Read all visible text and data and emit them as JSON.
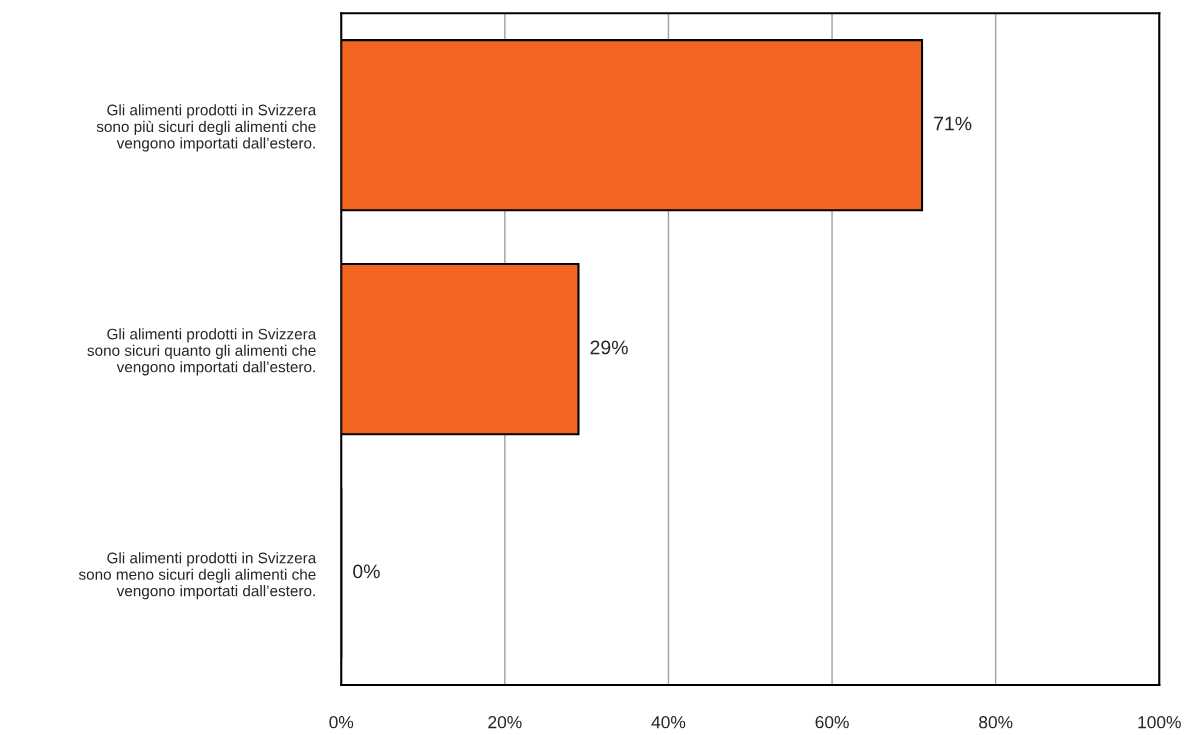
{
  "chart_data": {
    "type": "bar",
    "orientation": "horizontal",
    "categories": [
      "Gli alimenti prodotti in Svizzera\nsono più sicuri degli alimenti che\nvengono importati dall’estero.",
      "Gli alimenti prodotti in Svizzera\nsono sicuri quanto gli alimenti che\nvengono importati dall’estero.",
      "Gli alimenti prodotti in Svizzera\nsono meno sicuri degli alimenti che\nvengono importati dall’estero."
    ],
    "values": [
      71,
      29,
      0
    ],
    "value_labels": [
      "71%",
      "29%",
      "0%"
    ],
    "color": "#f26522",
    "xlim": [
      0,
      100
    ],
    "xticks": [
      {
        "value": 0,
        "label": "0%"
      },
      {
        "value": 20,
        "label": "20%"
      },
      {
        "value": 40,
        "label": "40%"
      },
      {
        "value": 60,
        "label": "60%"
      },
      {
        "value": 80,
        "label": "80%"
      },
      {
        "value": 100,
        "label": "100%"
      }
    ],
    "grid": "x",
    "legend": false
  }
}
